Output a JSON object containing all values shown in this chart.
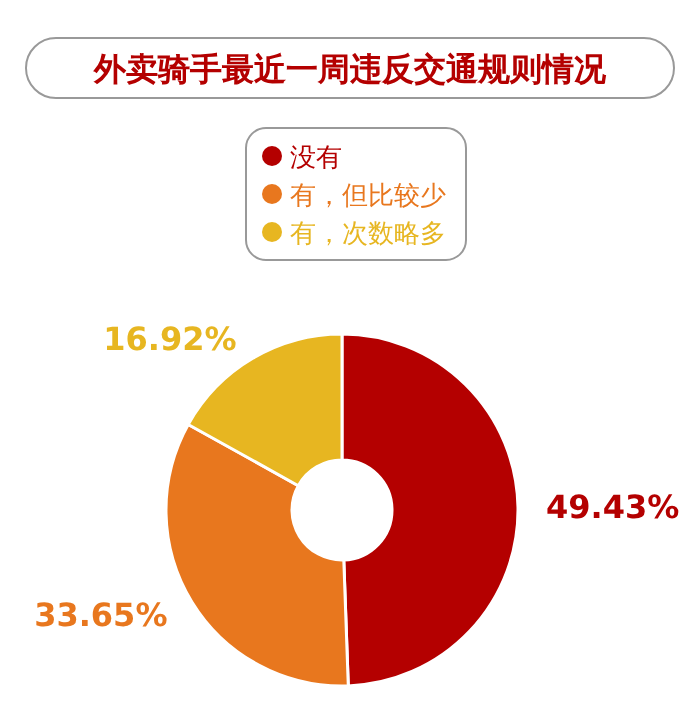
{
  "chart_data": {
    "type": "donut",
    "title": "外卖骑手最近一周违反交通规则情况",
    "categories": [
      "没有",
      "有，但比较少",
      "有，次数略多"
    ],
    "values": [
      49.43,
      33.65,
      16.92
    ],
    "colors": [
      "#b40000",
      "#e8771e",
      "#e7b621"
    ],
    "value_labels": [
      "49.43%",
      "33.65%",
      "16.92%"
    ],
    "legend": "top"
  }
}
